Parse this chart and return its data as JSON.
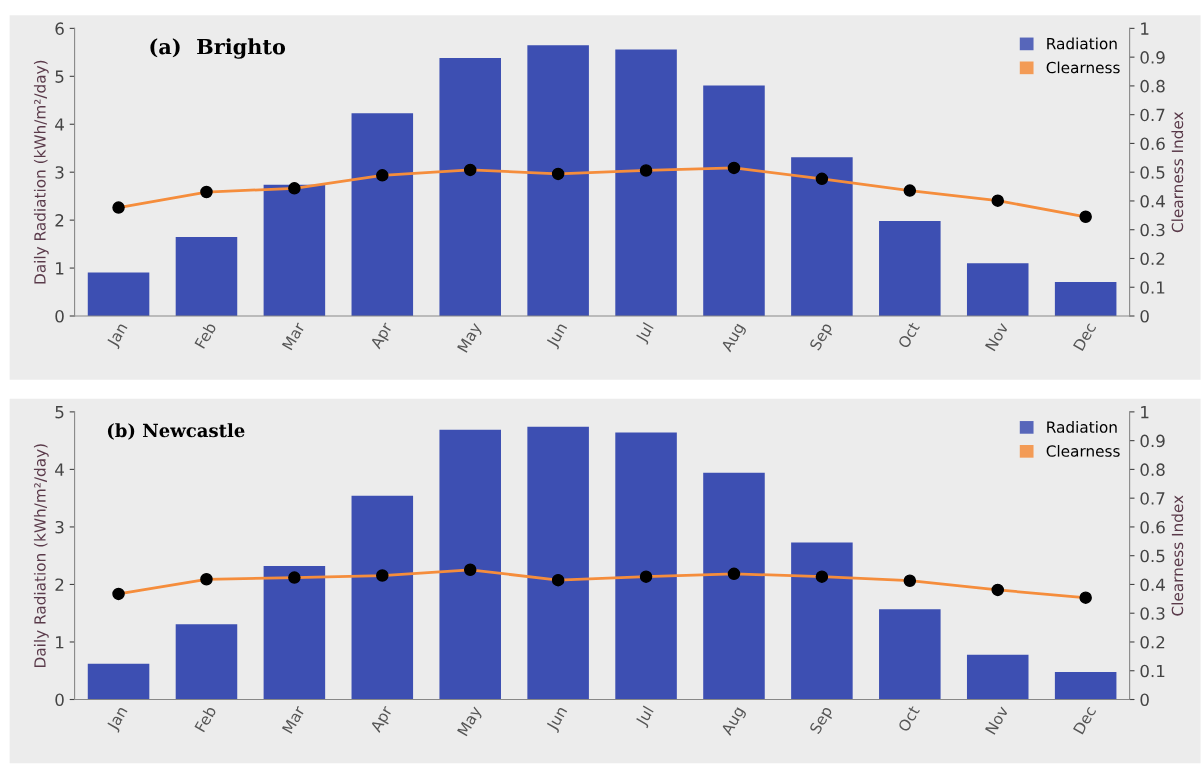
{
  "chart_data": [
    {
      "type": "bar",
      "title": "(a)  Brighto",
      "ylabel": "Daily Radiation (kWh/m²/day)",
      "y2label": "Clearness Index",
      "categories": [
        "Jan",
        "Feb",
        "Mar",
        "Apr",
        "May",
        "Jun",
        "Jul",
        "Aug",
        "Sep",
        "Oct",
        "Nov",
        "Dec"
      ],
      "series": [
        {
          "name": "Radiation",
          "color": "#3d4fb2",
          "values": [
            0.91,
            1.65,
            2.74,
            4.23,
            5.38,
            5.65,
            5.56,
            4.81,
            3.31,
            1.98,
            1.1,
            0.71
          ]
        },
        {
          "name": "Clearness",
          "type": "line",
          "axis": "y2",
          "color": "#f58d3c",
          "values": [
            0.377,
            0.431,
            0.444,
            0.489,
            0.508,
            0.494,
            0.506,
            0.515,
            0.477,
            0.436,
            0.401,
            0.345
          ]
        }
      ],
      "ylim": [
        0,
        6
      ],
      "yticks": [
        0,
        1,
        2,
        3,
        4,
        5,
        6
      ],
      "y2lim": [
        0,
        1
      ],
      "y2ticks": [
        0,
        0.1,
        0.2,
        0.3,
        0.4,
        0.5,
        0.6,
        0.7,
        0.8,
        0.9,
        1
      ],
      "legend": "top right",
      "marker": "circle",
      "grid": false
    },
    {
      "type": "bar",
      "title": "(b) Newcastle",
      "ylabel": "Daily Radiation (kWh/m²/day)",
      "y2label": "Clearness Index",
      "categories": [
        "Jan",
        "Feb",
        "Mar",
        "Apr",
        "May",
        "Jun",
        "Jul",
        "Aug",
        "Sep",
        "Oct",
        "Nov",
        "Dec"
      ],
      "series": [
        {
          "name": "Radiation",
          "color": "#3d4fb2",
          "values": [
            0.62,
            1.31,
            2.32,
            3.54,
            4.69,
            4.74,
            4.64,
            3.94,
            2.73,
            1.57,
            0.78,
            0.48
          ]
        },
        {
          "name": "Clearness",
          "type": "line",
          "axis": "y2",
          "color": "#f58d3c",
          "values": [
            0.367,
            0.418,
            0.424,
            0.431,
            0.451,
            0.415,
            0.427,
            0.437,
            0.427,
            0.413,
            0.381,
            0.354
          ]
        }
      ],
      "ylim": [
        0,
        5
      ],
      "yticks": [
        0,
        1,
        2,
        3,
        4,
        5
      ],
      "y2lim": [
        0,
        1
      ],
      "y2ticks": [
        0,
        0.1,
        0.2,
        0.3,
        0.4,
        0.5,
        0.6,
        0.7,
        0.8,
        0.9,
        1
      ],
      "legend": "top right",
      "marker": "circle",
      "grid": false
    }
  ]
}
